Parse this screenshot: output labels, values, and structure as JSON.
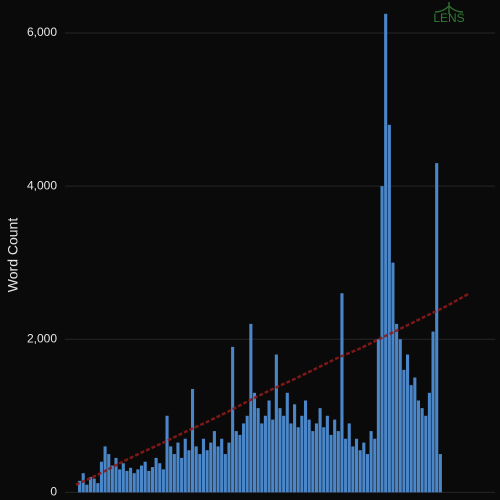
{
  "chart_data": {
    "type": "bar",
    "ylabel": "Word Count",
    "brand": "LENS",
    "x": [
      1,
      2,
      3,
      4,
      5,
      6,
      7,
      8,
      9,
      10,
      11,
      12,
      13,
      14,
      15,
      16,
      17,
      18,
      19,
      20,
      21,
      22,
      23,
      24,
      25,
      26,
      27,
      28,
      29,
      30,
      31,
      32,
      33,
      34,
      35,
      36,
      37,
      38,
      39,
      40,
      41,
      42,
      43,
      44,
      45,
      46,
      47,
      48,
      49,
      50,
      51,
      52,
      53,
      54,
      55,
      56,
      57,
      58,
      59,
      60,
      61,
      62,
      63,
      64,
      65,
      66,
      67,
      68,
      69,
      70,
      71,
      72,
      73,
      74,
      75,
      76,
      77,
      78,
      79,
      80,
      81,
      82,
      83,
      84,
      85,
      86,
      87,
      88,
      89,
      90,
      91,
      92,
      93,
      94,
      95,
      96,
      97,
      98,
      99,
      100
    ],
    "series": [
      {
        "type": "bar",
        "color": "#4a86c8",
        "values": [
          150,
          250,
          100,
          200,
          180,
          120,
          400,
          600,
          500,
          350,
          450,
          300,
          380,
          280,
          320,
          250,
          300,
          350,
          400,
          280,
          330,
          450,
          380,
          300,
          1000,
          600,
          500,
          650,
          450,
          700,
          550,
          1350,
          600,
          500,
          700,
          550,
          650,
          800,
          600,
          700,
          500,
          650,
          1900,
          800,
          750,
          900,
          1000,
          2200,
          1300,
          1100,
          900,
          1000,
          1200,
          950,
          1800,
          1100,
          1000,
          1300,
          900,
          1150,
          850,
          1000,
          1200,
          950,
          800,
          900,
          1100,
          850,
          1000,
          750,
          950,
          800,
          2600,
          700,
          900,
          600,
          700,
          550,
          650,
          500,
          800,
          700,
          2000,
          4000,
          6250,
          4800,
          3000,
          2200,
          2000,
          1600,
          1800,
          1400,
          1500,
          1200,
          1100,
          1000,
          1300,
          2100,
          4300,
          500
        ]
      },
      {
        "type": "line",
        "color": "#8b1a1a",
        "x": [
          0,
          6,
          12,
          18,
          24,
          30,
          36,
          42,
          48,
          54,
          60,
          66,
          72,
          78,
          84,
          90,
          96,
          102,
          108
        ],
        "values": [
          100,
          230,
          380,
          520,
          650,
          790,
          920,
          1060,
          1210,
          1350,
          1480,
          1620,
          1760,
          1880,
          2020,
          2160,
          2300,
          2440,
          2600
        ]
      }
    ],
    "xlim": [
      -3,
      115
    ],
    "ylim": [
      -100,
      6300
    ],
    "yticks": [
      {
        "value": 0,
        "label": "0"
      },
      {
        "value": 2000,
        "label": "2,000"
      },
      {
        "value": 4000,
        "label": "4,000"
      },
      {
        "value": 6000,
        "label": "6,000"
      }
    ],
    "grid": true
  }
}
